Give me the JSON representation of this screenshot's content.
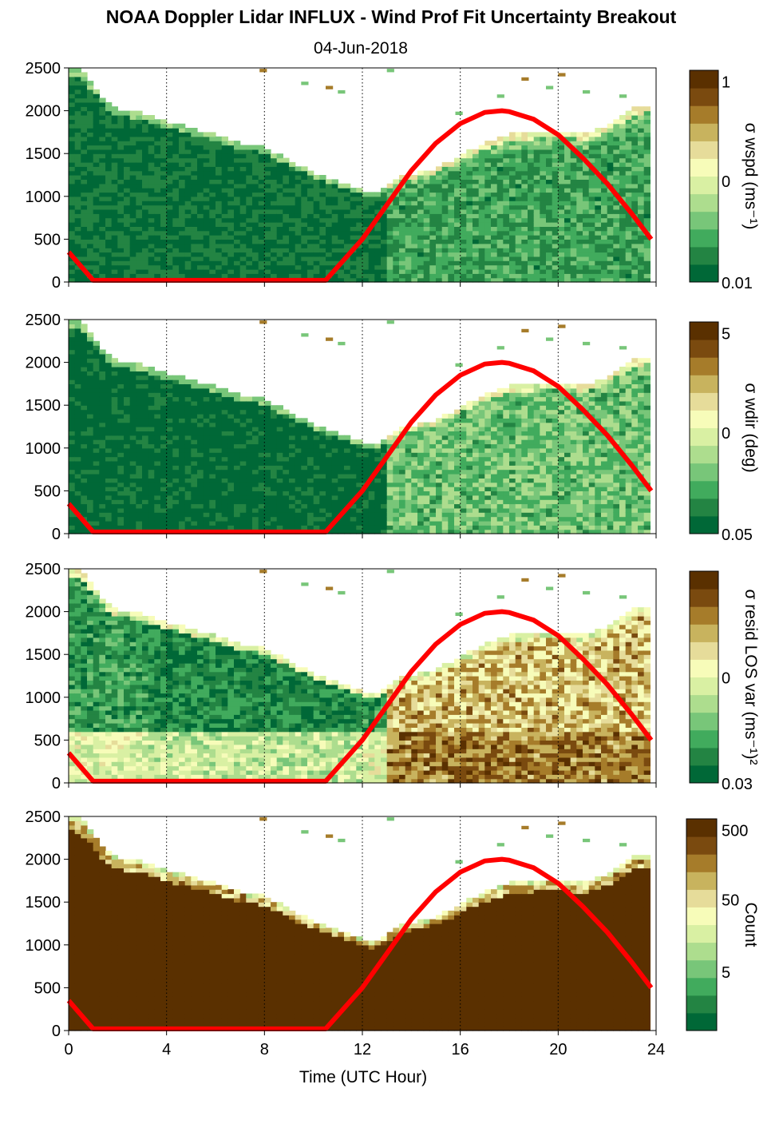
{
  "title": "NOAA Doppler Lidar INFLUX - Wind Prof Fit Uncertainty Breakout",
  "subtitle": "04-Jun-2018",
  "colors": {
    "colormap": [
      "#006837",
      "#238443",
      "#41ab5d",
      "#78c679",
      "#addd8e",
      "#d9f0a3",
      "#f7fcb9",
      "#e6dc9a",
      "#c8b35e",
      "#a67c2a",
      "#7a4a0f",
      "#5a3000"
    ],
    "sun_line": "#ff0000"
  },
  "chart_data": {
    "type": "heatmap",
    "xlabel": "Time (UTC Hour)",
    "xlim": [
      0,
      24
    ],
    "x_ticks": [
      "0",
      "4",
      "8",
      "12",
      "16",
      "20",
      "24"
    ],
    "x_tick_values": [
      0,
      4,
      8,
      12,
      16,
      20,
      24
    ],
    "ylim": [
      0,
      2500
    ],
    "y_ticks": [
      "0",
      "500",
      "1000",
      "1500",
      "2000",
      "2500"
    ],
    "y_tick_values": [
      0,
      500,
      1000,
      1500,
      2000,
      2500
    ],
    "grid": "dotted vertical lines at x ticks",
    "data_top_height": [
      [
        0,
        2500
      ],
      [
        0.5,
        2450
      ],
      [
        1,
        2300
      ],
      [
        1.5,
        2100
      ],
      [
        2,
        2000
      ],
      [
        3,
        1950
      ],
      [
        4,
        1850
      ],
      [
        5,
        1780
      ],
      [
        6,
        1700
      ],
      [
        7,
        1600
      ],
      [
        8,
        1550
      ],
      [
        9,
        1400
      ],
      [
        10,
        1250
      ],
      [
        11,
        1150
      ],
      [
        12,
        1050
      ],
      [
        12.5,
        1000
      ],
      [
        13,
        1100
      ],
      [
        13.5,
        1200
      ],
      [
        14,
        1230
      ],
      [
        15,
        1300
      ],
      [
        16,
        1450
      ],
      [
        17,
        1600
      ],
      [
        18,
        1700
      ],
      [
        19,
        1720
      ],
      [
        20,
        1750
      ],
      [
        21,
        1700
      ],
      [
        22,
        1800
      ],
      [
        23,
        2000
      ],
      [
        23.8,
        2050
      ]
    ],
    "sun_elevation_line": {
      "x": [
        0,
        1,
        2,
        4,
        6,
        8,
        10,
        10.5,
        11,
        12,
        13,
        14,
        15,
        16,
        17,
        17.7,
        18,
        19,
        20,
        21,
        22,
        23,
        23.8
      ],
      "y": [
        350,
        20,
        20,
        20,
        20,
        20,
        20,
        20,
        180,
        500,
        900,
        1300,
        1620,
        1850,
        1980,
        2000,
        1990,
        1900,
        1720,
        1450,
        1150,
        800,
        500
      ]
    },
    "panels": [
      {
        "id": "wspd",
        "colorbar_label": "σ wspd (ms⁻¹)",
        "colorbar_ticks": [
          "1",
          "0",
          "0.01"
        ],
        "scale": "log"
      },
      {
        "id": "wdir",
        "colorbar_label": "σ wdir (deg)",
        "colorbar_ticks": [
          "5",
          "0",
          "0.05"
        ],
        "scale": "log"
      },
      {
        "id": "resid",
        "colorbar_label": "σ resid LOS var (ms⁻¹)²",
        "colorbar_ticks": [
          "0",
          "0.03"
        ],
        "scale": "log"
      },
      {
        "id": "count",
        "colorbar_label": "Count",
        "colorbar_ticks": [
          "500",
          "50",
          "5"
        ],
        "scale": "log"
      }
    ]
  }
}
